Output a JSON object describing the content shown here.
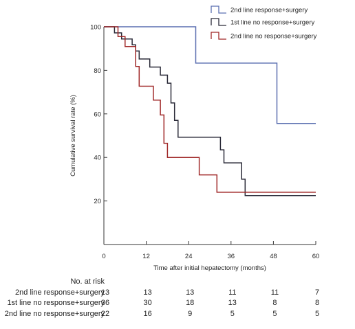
{
  "chart_data": {
    "type": "line",
    "xlabel": "Time after initial hepatectomy (months)",
    "ylabel": "Cumulative survival rate (%)",
    "xlim": [
      0,
      60
    ],
    "ylim": [
      0,
      100
    ],
    "xticks": [
      "0",
      "12",
      "24",
      "36",
      "48",
      "60"
    ],
    "yticks": [
      "20",
      "40",
      "60",
      "80",
      "100"
    ],
    "grid": false,
    "legend_placement": "top-right",
    "series": [
      {
        "name": "2nd line response+surgery",
        "color": "#5a6fb0",
        "steps": [
          [
            0,
            100
          ],
          [
            26,
            100
          ],
          [
            26,
            83.3
          ],
          [
            49,
            83.3
          ],
          [
            49,
            55.6
          ],
          [
            60,
            55.6
          ]
        ]
      },
      {
        "name": "1st line no response+surgery",
        "color": "#2a2a38",
        "steps": [
          [
            0,
            100
          ],
          [
            3,
            100
          ],
          [
            3,
            97.2
          ],
          [
            5,
            97.2
          ],
          [
            5,
            94.4
          ],
          [
            8,
            94.4
          ],
          [
            8,
            91.7
          ],
          [
            9,
            91.7
          ],
          [
            9,
            88.9
          ],
          [
            10,
            88.9
          ],
          [
            10,
            85.2
          ],
          [
            13,
            85.2
          ],
          [
            13,
            81.5
          ],
          [
            16,
            81.5
          ],
          [
            16,
            77.8
          ],
          [
            18,
            77.8
          ],
          [
            18,
            74.1
          ],
          [
            19,
            74.1
          ],
          [
            19,
            65
          ],
          [
            20,
            65
          ],
          [
            20,
            57
          ],
          [
            21,
            57
          ],
          [
            21,
            49.3
          ],
          [
            33,
            49.3
          ],
          [
            33,
            43.5
          ],
          [
            34,
            43.5
          ],
          [
            34,
            37.5
          ],
          [
            39,
            37.5
          ],
          [
            39,
            30
          ],
          [
            40,
            30
          ],
          [
            40,
            22.5
          ],
          [
            60,
            22.5
          ]
        ]
      },
      {
        "name": "2nd line no response+surgery",
        "color": "#a02828",
        "steps": [
          [
            0,
            100
          ],
          [
            4,
            100
          ],
          [
            4,
            95.5
          ],
          [
            6,
            95.5
          ],
          [
            6,
            90.9
          ],
          [
            9,
            90.9
          ],
          [
            9,
            81.8
          ],
          [
            10,
            81.8
          ],
          [
            10,
            72.7
          ],
          [
            14,
            72.7
          ],
          [
            14,
            66.3
          ],
          [
            16,
            66.3
          ],
          [
            16,
            59.5
          ],
          [
            17,
            59.5
          ],
          [
            17,
            46.5
          ],
          [
            18,
            46.5
          ],
          [
            18,
            40
          ],
          [
            27,
            40
          ],
          [
            27,
            32
          ],
          [
            32,
            32
          ],
          [
            32,
            24
          ],
          [
            60,
            24
          ]
        ]
      }
    ]
  },
  "risk_table": {
    "title": "No. at risk",
    "rows": [
      {
        "label": "2nd line response+surgery",
        "values": [
          "13",
          "13",
          "13",
          "11",
          "11",
          "7"
        ]
      },
      {
        "label": "1st line no response+surgery",
        "values": [
          "36",
          "30",
          "18",
          "13",
          "8",
          "8"
        ]
      },
      {
        "label": "2nd line no response+surgery",
        "values": [
          "22",
          "16",
          "9",
          "5",
          "5",
          "5"
        ]
      }
    ]
  }
}
